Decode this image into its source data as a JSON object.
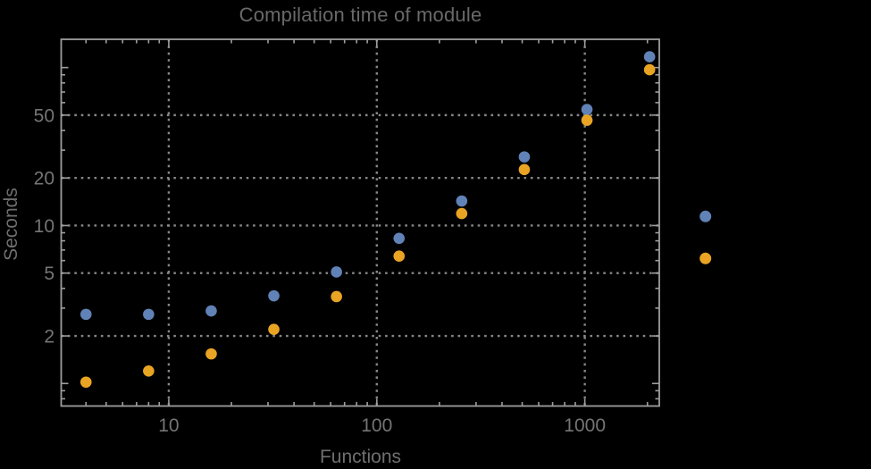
{
  "chart_data": {
    "type": "scatter",
    "title": "Compilation time of module",
    "xlabel": "Functions",
    "ylabel": "Seconds",
    "x_scale": "log",
    "y_scale": "log",
    "xlim": [
      3.04,
      2280
    ],
    "ylim": [
      0.72,
      151
    ],
    "x_ticks_labeled": [
      10,
      100,
      1000
    ],
    "y_ticks_labeled": [
      2,
      5,
      10,
      20,
      50
    ],
    "grid": "dotted lines at labeled ticks",
    "legend_position": "right, markers only (no visible label text)",
    "x": [
      4,
      8,
      16,
      32,
      64,
      128,
      256,
      512,
      1024,
      2048
    ],
    "series": [
      {
        "name": "",
        "color": "#6182B6",
        "values": [
          2.74,
          2.74,
          2.88,
          3.59,
          5.08,
          8.3,
          14.3,
          27.2,
          54.3,
          117
        ]
      },
      {
        "name": "",
        "color": "#E9A424",
        "values": [
          1.02,
          1.2,
          1.54,
          2.2,
          3.55,
          6.4,
          11.9,
          22.6,
          46.4,
          96.9
        ]
      }
    ],
    "colors": {
      "background": "#000000",
      "frame": "#9e9e9e",
      "gridline": "#878787",
      "tick_label": "#757575",
      "title_text": "#696969"
    }
  }
}
